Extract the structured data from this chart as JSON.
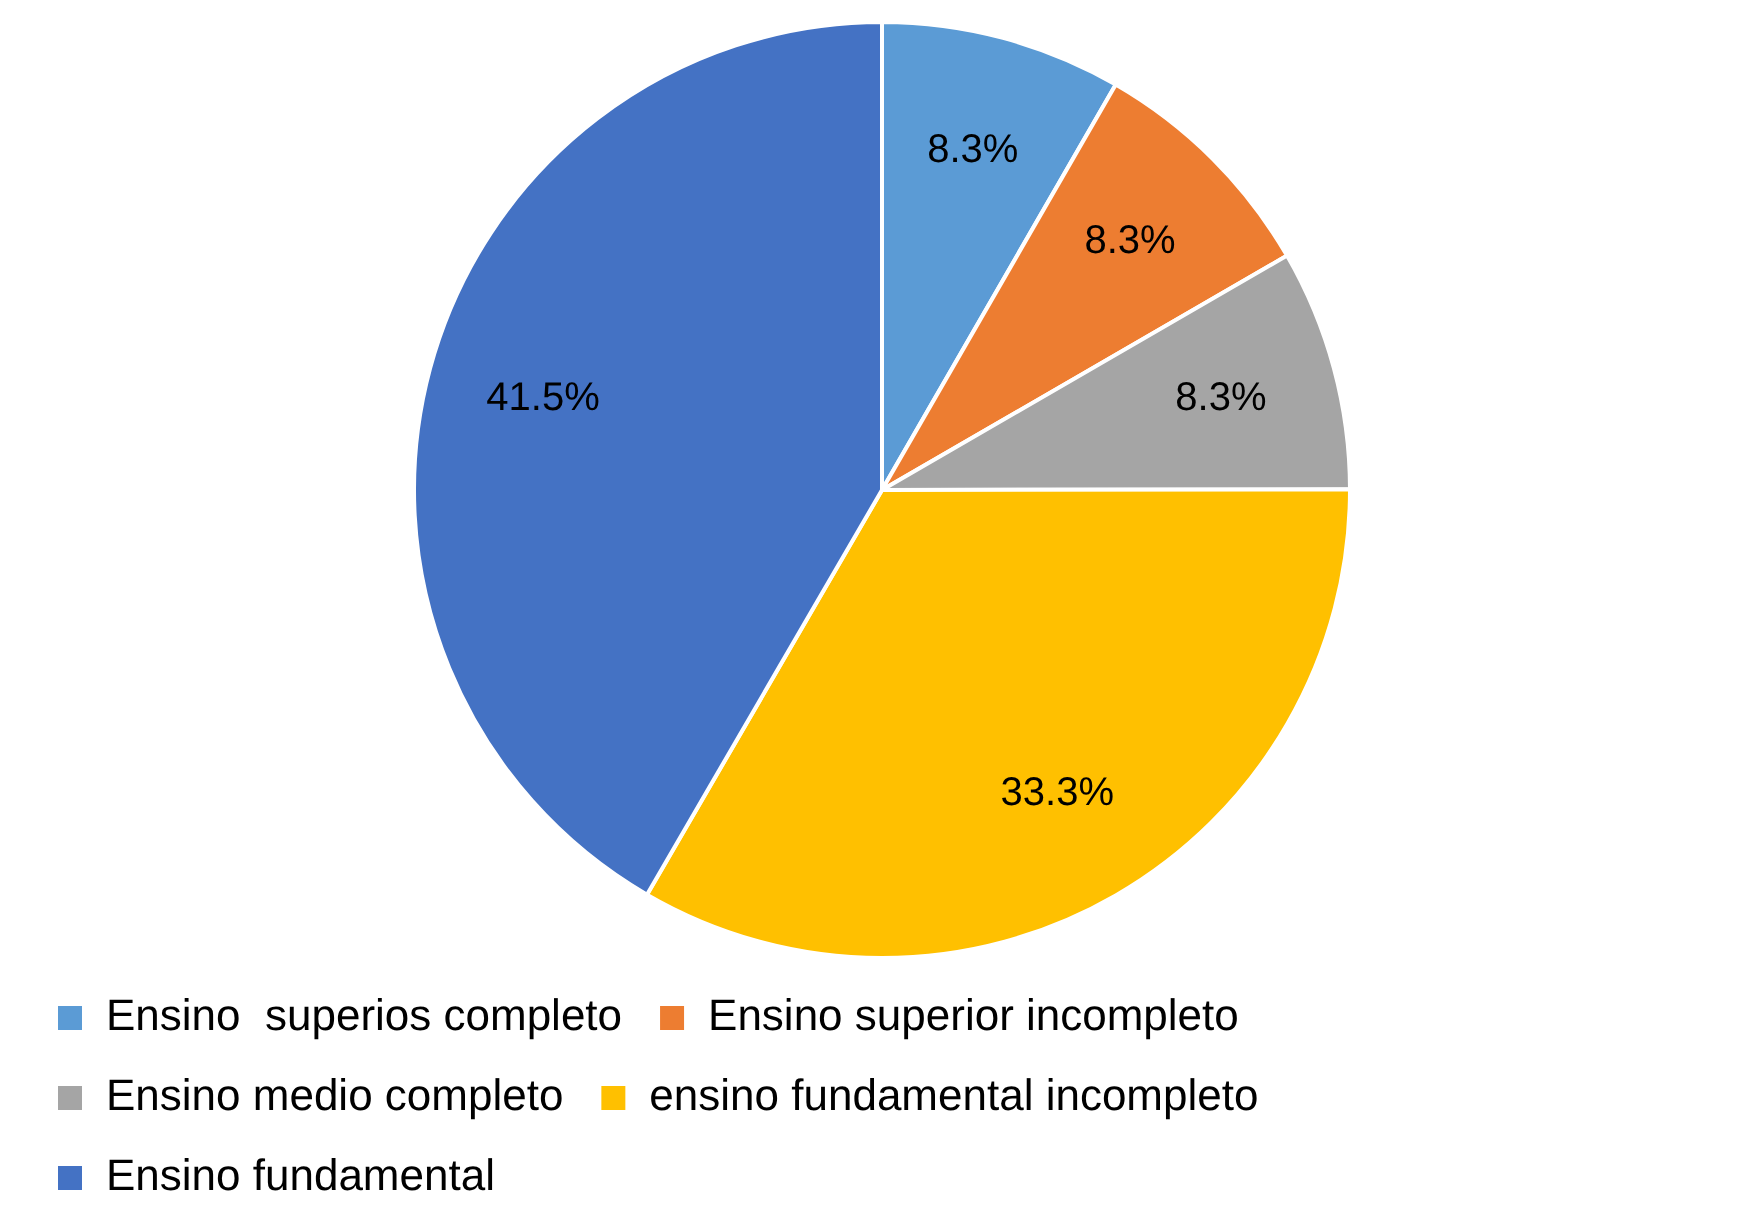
{
  "chart_data": {
    "type": "pie",
    "categories": [
      "Ensino  superios completo",
      "Ensino superior incompleto",
      "Ensino medio completo",
      "ensino fundamental incompleto",
      "Ensino fundamental"
    ],
    "values": [
      8.3,
      8.3,
      8.3,
      33.3,
      41.5
    ],
    "colors": [
      "#5b9bd5",
      "#ed7d31",
      "#a5a5a5",
      "#ffc000",
      "#4472c4"
    ],
    "value_labels": [
      "8.3%",
      "8.3%",
      "8.3%",
      "33.3%",
      "41.5%"
    ],
    "legend": "bottom"
  }
}
